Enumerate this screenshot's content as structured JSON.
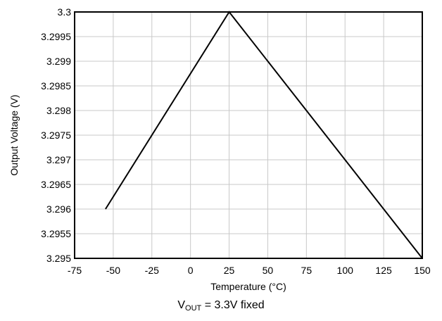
{
  "chart_data": {
    "type": "line",
    "title": "",
    "xlabel": "Temperature (°C)",
    "ylabel": "Output Voltage (V)",
    "xlim": [
      -75,
      150
    ],
    "ylim": [
      3.295,
      3.3
    ],
    "x_ticks": [
      "-75",
      "-50",
      "-25",
      "0",
      "25",
      "50",
      "75",
      "100",
      "125",
      "150"
    ],
    "y_ticks": [
      "3.3",
      "3.2995",
      "3.299",
      "3.2985",
      "3.298",
      "3.2975",
      "3.297",
      "3.2965",
      "3.296",
      "3.2955",
      "3.295"
    ],
    "grid": true,
    "series": [
      {
        "x": [
          -55,
          25,
          150
        ],
        "y": [
          3.296,
          3.3,
          3.295
        ],
        "color": "#000000"
      }
    ]
  },
  "caption": {
    "v": "V",
    "sub": "OUT",
    "rest": " = 3.3V fixed"
  }
}
